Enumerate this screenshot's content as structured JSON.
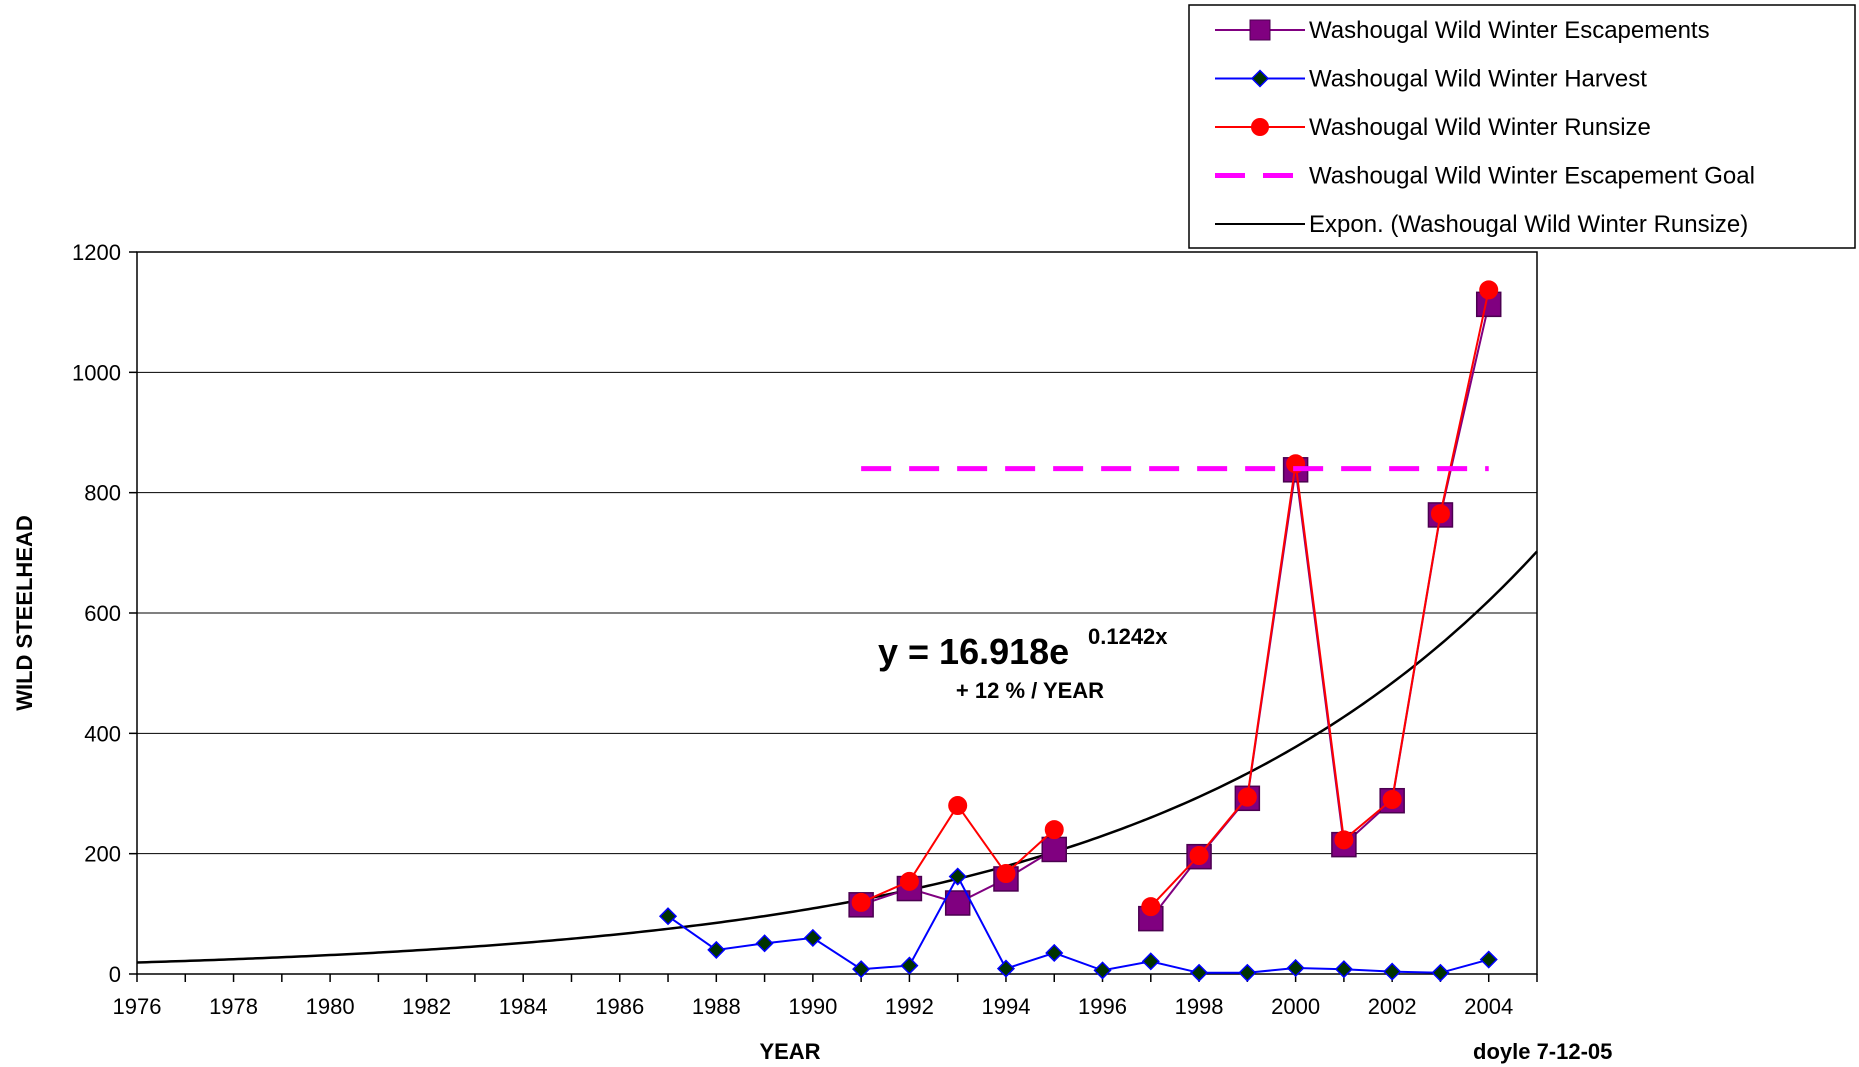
{
  "chart_data": {
    "type": "line",
    "xlabel": "YEAR",
    "ylabel": "WILD STEELHEAD",
    "xlim": [
      1976,
      2005
    ],
    "ylim": [
      0,
      1200
    ],
    "x_ticks": [
      1976,
      1978,
      1980,
      1982,
      1984,
      1986,
      1988,
      1990,
      1992,
      1994,
      1996,
      1998,
      2000,
      2002,
      2004
    ],
    "y_ticks": [
      0,
      200,
      400,
      600,
      800,
      1000,
      1200
    ],
    "grid": "horizontal",
    "legend_position": "top-right",
    "series": [
      {
        "name": "Washougal Wild Winter Escapements",
        "color": "#800080",
        "marker": "square",
        "points": [
          [
            1991,
            115
          ],
          [
            1992,
            142
          ],
          [
            1993,
            118
          ],
          [
            1994,
            158
          ],
          [
            1995,
            207
          ],
          [
            1997,
            92
          ],
          [
            1998,
            195
          ],
          [
            1999,
            292
          ],
          [
            2000,
            838
          ],
          [
            2001,
            215
          ],
          [
            2002,
            288
          ],
          [
            2003,
            763
          ],
          [
            2004,
            1113
          ]
        ]
      },
      {
        "name": "Washougal Wild Winter Harvest",
        "color": "#0000ff",
        "marker": "diamond",
        "points": [
          [
            1987,
            96
          ],
          [
            1988,
            40
          ],
          [
            1989,
            51
          ],
          [
            1990,
            60
          ],
          [
            1991,
            8
          ],
          [
            1992,
            14
          ],
          [
            1993,
            162
          ],
          [
            1994,
            9
          ],
          [
            1995,
            35
          ],
          [
            1996,
            6
          ],
          [
            1997,
            21
          ],
          [
            1998,
            2
          ],
          [
            1999,
            2
          ],
          [
            2000,
            10
          ],
          [
            2001,
            8
          ],
          [
            2002,
            4
          ],
          [
            2003,
            2
          ],
          [
            2004,
            24
          ]
        ]
      },
      {
        "name": "Washougal Wild Winter Runsize",
        "color": "#ff0000",
        "marker": "circle",
        "points": [
          [
            1991,
            119
          ],
          [
            1992,
            154
          ],
          [
            1993,
            280
          ],
          [
            1994,
            167
          ],
          [
            1995,
            240
          ],
          [
            1997,
            112
          ],
          [
            1998,
            197
          ],
          [
            1999,
            294
          ],
          [
            2000,
            848
          ],
          [
            2001,
            223
          ],
          [
            2002,
            290
          ],
          [
            2003,
            765
          ],
          [
            2004,
            1137
          ]
        ]
      },
      {
        "name": "Washougal Wild Winter Escapement Goal",
        "color": "#ff00ff",
        "style": "dashed",
        "points": [
          [
            1991,
            840
          ],
          [
            2004,
            840
          ]
        ]
      },
      {
        "name": "Expon. (Washougal Wild Winter Runsize)",
        "color": "#000000",
        "style": "trendline",
        "trend": {
          "a": 16.918,
          "b": 0.1242,
          "x_origin": 1975
        }
      }
    ],
    "annotations": {
      "equation_base": "y = 16.918e",
      "equation_exponent": "0.1242x",
      "growth": "+ 12 % / YEAR",
      "credit": "doyle 7-12-05"
    }
  }
}
